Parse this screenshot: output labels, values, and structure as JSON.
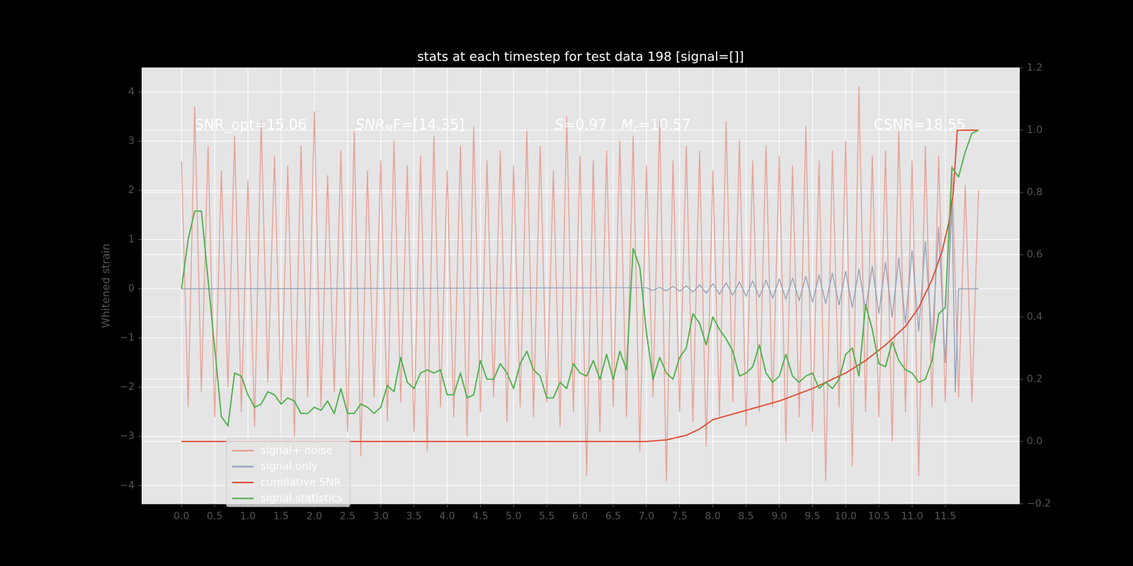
{
  "chart_data": {
    "type": "line",
    "title": "stats at each timestep for test data 198 [signal=[]]",
    "ylabel": "Whitened strain",
    "annotations": [
      {
        "text": "SNR_opt=15.06"
      },
      {
        "text": "SNR",
        "sub": "M",
        "after": "F=[14.35]"
      },
      {
        "text": "S",
        "after": "=0.97"
      },
      {
        "text": "M",
        "sub": "c",
        "after": "=10.57"
      },
      {
        "text": "CSNR=18.55"
      }
    ],
    "xlim": [
      -0.6,
      12.62
    ],
    "xticks": [
      {
        "value": 0,
        "label": "0.0"
      },
      0.5,
      {
        "value": 1,
        "label": "1.0"
      },
      1.5,
      {
        "value": 2,
        "label": "2.0"
      },
      2.5,
      {
        "value": 3,
        "label": "3.0"
      },
      3.5,
      {
        "value": 4,
        "label": "4.0"
      },
      4.5,
      {
        "value": 5,
        "label": "5.0"
      },
      5.5,
      {
        "value": 6,
        "label": "6.0"
      },
      6.5,
      {
        "value": 7,
        "label": "7.0"
      },
      7.5,
      {
        "value": 8,
        "label": "8.0"
      },
      8.5,
      {
        "value": 9,
        "label": "9.0"
      },
      9.5,
      {
        "value": 10,
        "label": "10.0"
      },
      10.5,
      {
        "value": 11,
        "label": "11.0"
      },
      11.5
    ],
    "ylim": [
      -4.37,
      4.49
    ],
    "yticks": [
      {
        "value": -4,
        "label": "−4"
      },
      {
        "value": -3,
        "label": "−3"
      },
      {
        "value": -2,
        "label": "−2"
      },
      {
        "value": -1,
        "label": "−1"
      },
      0,
      1,
      2,
      3,
      4
    ],
    "y2lim": [
      -0.2,
      1.2
    ],
    "y2ticks": [
      {
        "value": -0.2,
        "label": "−0.2"
      },
      {
        "value": 0,
        "label": "0.0"
      },
      0.2,
      0.4,
      0.6,
      0.8,
      {
        "value": 1,
        "label": "1.0"
      },
      1.2
    ],
    "grid": true,
    "legend": "lower left",
    "x": [
      0,
      0.1,
      0.2,
      0.3,
      0.4,
      0.5,
      0.6,
      0.7,
      0.8,
      0.9,
      1,
      1.1,
      1.2,
      1.3,
      1.4,
      1.5,
      1.6,
      1.7,
      1.8,
      1.9,
      2,
      2.1,
      2.2,
      2.3,
      2.4,
      2.5,
      2.6,
      2.7,
      2.8,
      2.9,
      3,
      3.1,
      3.2,
      3.3,
      3.4,
      3.5,
      3.6,
      3.7,
      3.8,
      3.9,
      4,
      4.1,
      4.2,
      4.3,
      4.4,
      4.5,
      4.6,
      4.7,
      4.8,
      4.9,
      5,
      5.1,
      5.2,
      5.3,
      5.4,
      5.5,
      5.6,
      5.7,
      5.8,
      5.9,
      6,
      6.1,
      6.2,
      6.3,
      6.4,
      6.5,
      6.6,
      6.7,
      6.8,
      6.9,
      7,
      7.1,
      7.2,
      7.3,
      7.4,
      7.5,
      7.6,
      7.7,
      7.8,
      7.9,
      8,
      8.1,
      8.2,
      8.3,
      8.4,
      8.5,
      8.6,
      8.7,
      8.8,
      8.9,
      9,
      9.1,
      9.2,
      9.3,
      9.4,
      9.5,
      9.6,
      9.7,
      9.8,
      9.9,
      10,
      10.1,
      10.2,
      10.3,
      10.4,
      10.5,
      10.6,
      10.7,
      10.8,
      10.9,
      11,
      11.1,
      11.2,
      11.3,
      11.4,
      11.5,
      11.6,
      11.7,
      11.8,
      11.9,
      12
    ],
    "series": [
      {
        "name": "signal+ noise",
        "color": "#E8998D",
        "values": [
          2.6,
          -2.4,
          3.7,
          -2.1,
          2.9,
          -2.6,
          2.4,
          -2.0,
          3.1,
          -2.5,
          2.2,
          -2.8,
          3.4,
          -1.9,
          2.7,
          -2.3,
          2.5,
          -3.0,
          2.9,
          -2.2,
          3.6,
          -2.4,
          2.3,
          -2.1,
          2.8,
          -2.9,
          3.2,
          -3.4,
          2.4,
          -2.2,
          2.6,
          -2.7,
          3.0,
          -2.3,
          2.5,
          -2.9,
          2.7,
          -3.3,
          3.1,
          -2.4,
          2.4,
          -2.6,
          2.9,
          -3.0,
          3.3,
          -2.5,
          2.6,
          -2.2,
          2.8,
          -2.7,
          2.5,
          -2.4,
          3.2,
          -2.6,
          2.9,
          -2.3,
          2.4,
          -2.8,
          3.5,
          -2.5,
          2.7,
          -3.8,
          2.6,
          -2.9,
          2.8,
          -2.4,
          3.0,
          -2.6,
          3.1,
          -3.3,
          2.5,
          -2.2,
          3.4,
          -3.9,
          2.6,
          -2.5,
          2.9,
          -2.7,
          2.8,
          -3.2,
          2.4,
          -2.6,
          3.4,
          -2.3,
          3.0,
          -2.8,
          2.6,
          -2.5,
          2.9,
          -2.4,
          2.7,
          -3.1,
          2.5,
          -2.6,
          3.3,
          -2.9,
          2.6,
          -3.9,
          2.8,
          -2.4,
          3.0,
          -3.6,
          4.1,
          -2.5,
          2.7,
          -2.6,
          2.8,
          -3.1,
          3.2,
          -2.5,
          2.6,
          -3.8,
          2.9,
          -2.4,
          2.7,
          -2.3,
          2.5,
          -2.2,
          2.1,
          -2.3,
          2.0
        ]
      },
      {
        "name": "signal only",
        "color": "#8C9BB5",
        "x": [
          0,
          7,
          7.1,
          7.2,
          7.3,
          7.4,
          7.5,
          7.6,
          7.7,
          7.8,
          7.9,
          8,
          8.1,
          8.2,
          8.3,
          8.4,
          8.5,
          8.6,
          8.7,
          8.8,
          8.9,
          9,
          9.1,
          9.2,
          9.3,
          9.4,
          9.5,
          9.6,
          9.7,
          9.8,
          9.9,
          10,
          10.1,
          10.2,
          10.3,
          10.4,
          10.5,
          10.6,
          10.7,
          10.8,
          10.9,
          11,
          11.1,
          11.2,
          11.3,
          11.4,
          11.5,
          11.6,
          11.65,
          11.7,
          12
        ],
        "values": [
          0,
          0.02,
          -0.03,
          0.03,
          -0.04,
          0.05,
          -0.05,
          0.06,
          -0.07,
          0.08,
          -0.09,
          0.1,
          -0.11,
          0.12,
          -0.13,
          0.14,
          -0.15,
          0.16,
          -0.17,
          0.18,
          -0.19,
          0.2,
          -0.21,
          0.22,
          -0.24,
          0.25,
          -0.27,
          0.28,
          -0.3,
          0.32,
          -0.33,
          0.35,
          -0.38,
          0.4,
          -0.43,
          0.46,
          -0.5,
          0.54,
          -0.58,
          0.63,
          -0.7,
          0.78,
          -0.86,
          0.96,
          -1.1,
          1.25,
          -1.5,
          1.8,
          -2.1,
          0,
          0
        ]
      },
      {
        "name": "cumilative SNR",
        "color": "#E24A33",
        "axis": "y2",
        "x": [
          0,
          7,
          7.3,
          7.6,
          7.8,
          8,
          8.5,
          9,
          9.5,
          10,
          10.3,
          10.6,
          10.9,
          11.1,
          11.3,
          11.45,
          11.55,
          11.62,
          11.68,
          12
        ],
        "values": [
          0,
          0,
          0.005,
          0.02,
          0.04,
          0.07,
          0.1,
          0.13,
          0.17,
          0.22,
          0.26,
          0.31,
          0.37,
          0.43,
          0.52,
          0.61,
          0.7,
          0.8,
          1.0,
          1.0
        ]
      },
      {
        "name": "signal statistics",
        "color": "#4DAF4A",
        "axis": "y2",
        "values": [
          0.49,
          0.65,
          0.74,
          0.74,
          0.52,
          0.3,
          0.08,
          0.05,
          0.22,
          0.21,
          0.15,
          0.11,
          0.12,
          0.16,
          0.15,
          0.12,
          0.14,
          0.13,
          0.09,
          0.09,
          0.11,
          0.1,
          0.13,
          0.09,
          0.17,
          0.09,
          0.09,
          0.12,
          0.11,
          0.09,
          0.11,
          0.18,
          0.16,
          0.27,
          0.19,
          0.17,
          0.22,
          0.23,
          0.22,
          0.23,
          0.15,
          0.15,
          0.22,
          0.14,
          0.15,
          0.26,
          0.2,
          0.2,
          0.25,
          0.22,
          0.17,
          0.25,
          0.29,
          0.23,
          0.21,
          0.14,
          0.14,
          0.19,
          0.17,
          0.25,
          0.22,
          0.21,
          0.26,
          0.2,
          0.28,
          0.2,
          0.29,
          0.23,
          0.62,
          0.56,
          0.35,
          0.2,
          0.27,
          0.22,
          0.2,
          0.27,
          0.3,
          0.41,
          0.38,
          0.31,
          0.4,
          0.36,
          0.33,
          0.29,
          0.21,
          0.22,
          0.24,
          0.31,
          0.22,
          0.19,
          0.21,
          0.28,
          0.21,
          0.19,
          0.21,
          0.22,
          0.17,
          0.19,
          0.17,
          0.2,
          0.28,
          0.3,
          0.21,
          0.44,
          0.36,
          0.25,
          0.24,
          0.32,
          0.26,
          0.23,
          0.22,
          0.19,
          0.2,
          0.26,
          0.41,
          0.43,
          0.88,
          0.85,
          0.93,
          0.99,
          1.0
        ]
      }
    ]
  }
}
